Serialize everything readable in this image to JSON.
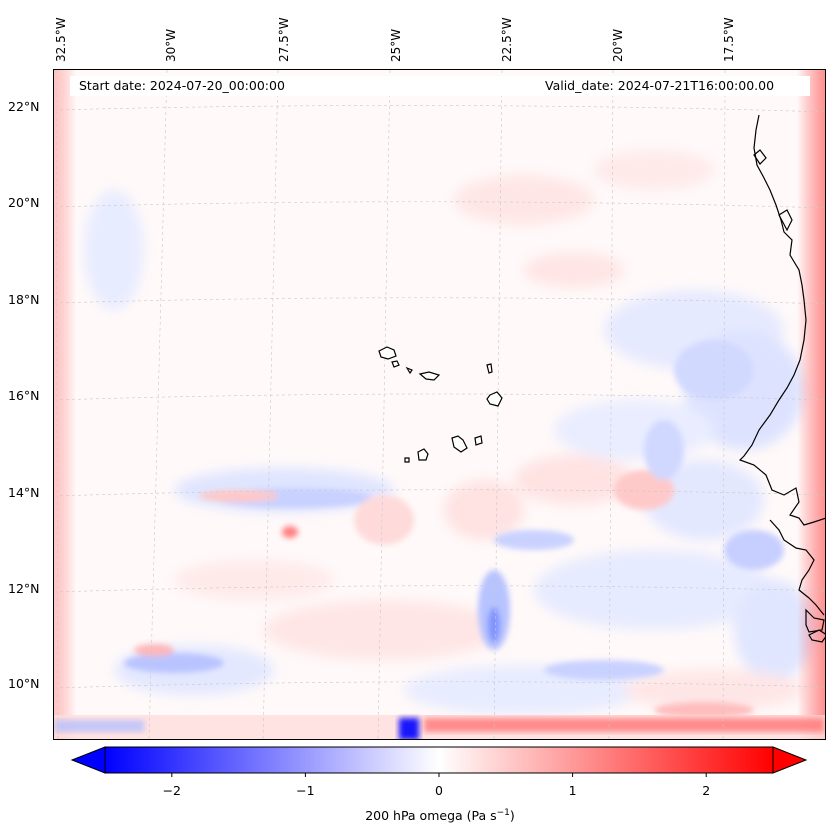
{
  "header": {
    "start_date": "Start date: 2024-07-20_00:00:00",
    "valid_date": "Valid_date: 2024-07-21T16:00:00.00"
  },
  "axes": {
    "longitude_labels": [
      "32.5°W",
      "30°W",
      "27.5°W",
      "25°W",
      "22.5°W",
      "20°W",
      "17.5°W"
    ],
    "latitude_labels": [
      "22°N",
      "20°N",
      "18°N",
      "16°N",
      "14°N",
      "12°N",
      "10°N"
    ]
  },
  "colorbar": {
    "tick_labels": [
      "−2",
      "−1",
      "0",
      "1",
      "2"
    ],
    "tick_values": [
      -2,
      -1,
      0,
      1,
      2
    ],
    "range": [
      -2.5,
      2.5
    ],
    "label_text": "200 hPa omega (Pa s",
    "label_sup": "−1",
    "label_close": ")",
    "colormap": "bwr",
    "negative_color": "#0000ff",
    "neutral_color": "#ffffff",
    "positive_color": "#ff0000"
  },
  "map": {
    "variable": "200 hPa omega",
    "coastline_color": "#000000",
    "gridline_color": "#c8c8c8"
  }
}
